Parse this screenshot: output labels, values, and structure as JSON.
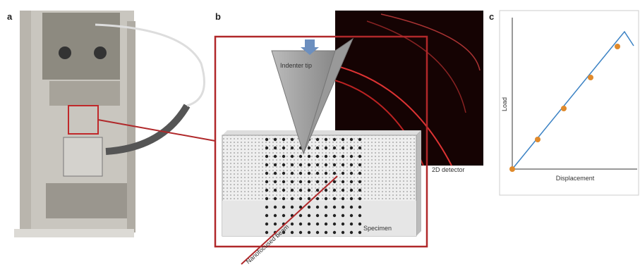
{
  "panels": {
    "a": {
      "label": "a"
    },
    "b": {
      "label": "b",
      "indenter": "Indenter tip",
      "detector": "2D detector",
      "specimen": "Specimen",
      "beam": "Nanofocused beam"
    },
    "c": {
      "label": "c",
      "y_axis": "Load",
      "x_axis": "Displacement"
    }
  }
}
